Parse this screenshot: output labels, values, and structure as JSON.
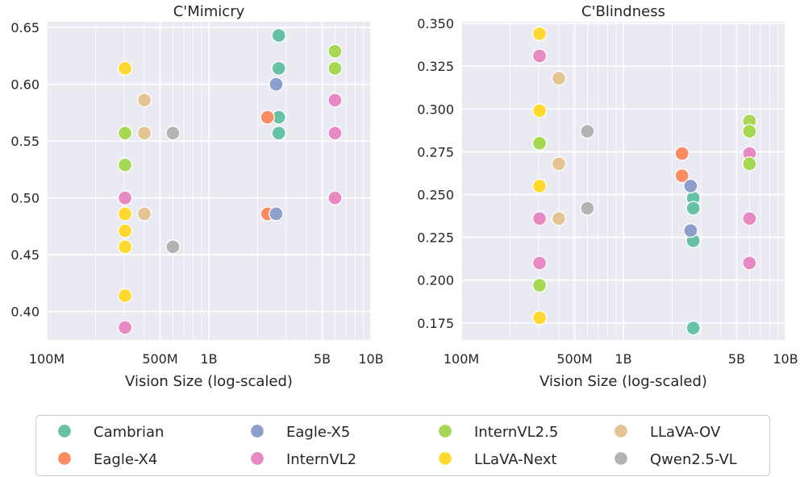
{
  "chart_data": [
    {
      "type": "scatter",
      "title": "C'Mimicry",
      "xlabel": "Vision Size (log-scaled)",
      "ylabel": "",
      "xscale": "log",
      "xlim": [
        100,
        10000
      ],
      "ylim": [
        0.375,
        0.655
      ],
      "xticks": [
        100,
        500,
        1000,
        5000,
        10000
      ],
      "xtick_labels": [
        "100M",
        "500M",
        "1B",
        "5B",
        "10B"
      ],
      "yticks": [
        0.4,
        0.45,
        0.5,
        0.55,
        0.6,
        0.65
      ],
      "ytick_labels": [
        "0.40",
        "0.45",
        "0.50",
        "0.55",
        "0.60",
        "0.65"
      ],
      "series": [
        {
          "name": "Cambrian",
          "points": [
            [
              2700,
              0.643
            ],
            [
              2700,
              0.614
            ],
            [
              2700,
              0.571
            ],
            [
              2700,
              0.557
            ]
          ]
        },
        {
          "name": "Eagle-X4",
          "points": [
            [
              2300,
              0.571
            ],
            [
              2300,
              0.486
            ]
          ]
        },
        {
          "name": "Eagle-X5",
          "points": [
            [
              2600,
              0.6
            ],
            [
              2600,
              0.486
            ]
          ]
        },
        {
          "name": "InternVL2",
          "points": [
            [
              304,
              0.5
            ],
            [
              304,
              0.386
            ],
            [
              6000,
              0.586
            ],
            [
              6000,
              0.557
            ],
            [
              6000,
              0.5
            ]
          ]
        },
        {
          "name": "InternVL2.5",
          "points": [
            [
              304,
              0.557
            ],
            [
              304,
              0.529
            ],
            [
              6000,
              0.629
            ],
            [
              6000,
              0.614
            ]
          ]
        },
        {
          "name": "LLaVA-Next",
          "points": [
            [
              304,
              0.614
            ],
            [
              304,
              0.486
            ],
            [
              304,
              0.471
            ],
            [
              304,
              0.457
            ],
            [
              304,
              0.414
            ]
          ]
        },
        {
          "name": "LLaVA-OV",
          "points": [
            [
              400,
              0.586
            ],
            [
              400,
              0.557
            ],
            [
              400,
              0.486
            ]
          ]
        },
        {
          "name": "Qwen2.5-VL",
          "points": [
            [
              600,
              0.557
            ],
            [
              600,
              0.457
            ]
          ]
        }
      ]
    },
    {
      "type": "scatter",
      "title": "C'Blindness",
      "xlabel": "Vision Size (log-scaled)",
      "ylabel": "",
      "xscale": "log",
      "xlim": [
        100,
        10000
      ],
      "ylim": [
        0.165,
        0.351
      ],
      "xticks": [
        100,
        500,
        1000,
        5000,
        10000
      ],
      "xtick_labels": [
        "100M",
        "500M",
        "1B",
        "5B",
        "10B"
      ],
      "yticks": [
        0.175,
        0.2,
        0.225,
        0.25,
        0.275,
        0.3,
        0.325,
        0.35
      ],
      "ytick_labels": [
        "0.175",
        "0.200",
        "0.225",
        "0.250",
        "0.275",
        "0.300",
        "0.325",
        "0.350"
      ],
      "series": [
        {
          "name": "Cambrian",
          "points": [
            [
              2700,
              0.248
            ],
            [
              2700,
              0.242
            ],
            [
              2700,
              0.223
            ],
            [
              2700,
              0.172
            ]
          ]
        },
        {
          "name": "Eagle-X4",
          "points": [
            [
              2300,
              0.274
            ],
            [
              2300,
              0.261
            ]
          ]
        },
        {
          "name": "Eagle-X5",
          "points": [
            [
              2600,
              0.255
            ],
            [
              2600,
              0.229
            ]
          ]
        },
        {
          "name": "InternVL2",
          "points": [
            [
              304,
              0.331
            ],
            [
              304,
              0.236
            ],
            [
              304,
              0.21
            ],
            [
              6000,
              0.274
            ],
            [
              6000,
              0.236
            ],
            [
              6000,
              0.21
            ]
          ]
        },
        {
          "name": "InternVL2.5",
          "points": [
            [
              304,
              0.28
            ],
            [
              304,
              0.197
            ],
            [
              6000,
              0.293
            ],
            [
              6000,
              0.287
            ],
            [
              6000,
              0.268
            ]
          ]
        },
        {
          "name": "LLaVA-Next",
          "points": [
            [
              304,
              0.344
            ],
            [
              304,
              0.299
            ],
            [
              304,
              0.255
            ],
            [
              304,
              0.178
            ]
          ]
        },
        {
          "name": "LLaVA-OV",
          "points": [
            [
              400,
              0.318
            ],
            [
              400,
              0.268
            ],
            [
              400,
              0.236
            ]
          ]
        },
        {
          "name": "Qwen2.5-VL",
          "points": [
            [
              600,
              0.287
            ],
            [
              600,
              0.242
            ]
          ]
        }
      ]
    }
  ],
  "colors": {
    "Cambrian": "#66c2a5",
    "Eagle-X4": "#fc8d62",
    "Eagle-X5": "#8da0cb",
    "InternVL2": "#e78ac3",
    "InternVL2.5": "#a6d854",
    "LLaVA-Next": "#ffd92f",
    "LLaVA-OV": "#e5c494",
    "Qwen2.5-VL": "#b3b3b3",
    "plot_bg": "#eaeaf2",
    "grid": "#ffffff"
  },
  "legend": {
    "location": "bottom-center",
    "entries": [
      "Cambrian",
      "Eagle-X4",
      "Eagle-X5",
      "InternVL2",
      "InternVL2.5",
      "LLaVA-Next",
      "LLaVA-OV",
      "Qwen2.5-VL"
    ]
  }
}
